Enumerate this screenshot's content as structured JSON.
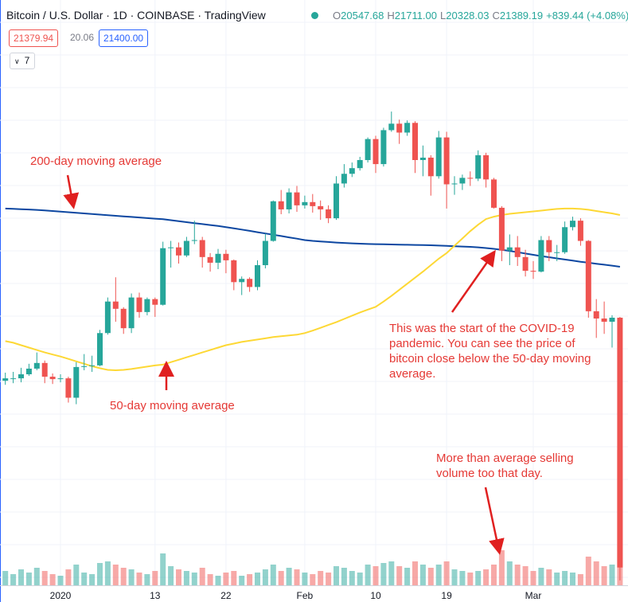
{
  "header": {
    "title": "Bitcoin / U.S. Dollar · 1D · COINBASE · TradingView",
    "ohlc": [
      {
        "label": "O",
        "value": "20547.68"
      },
      {
        "label": "H",
        "value": "21711.00"
      },
      {
        "label": "L",
        "value": "20328.03"
      },
      {
        "label": "C",
        "value": "21389.19"
      }
    ],
    "change": "+839.44 (+4.08%)",
    "price_boxes": {
      "bid": "21379.94",
      "spread": "20.06",
      "ask": "21400.00"
    },
    "indicators": "7"
  },
  "chart_data": {
    "type": "candlestick",
    "categories": [
      null,
      null,
      null,
      null,
      null,
      null,
      null,
      "2020",
      null,
      null,
      null,
      null,
      null,
      null,
      null,
      null,
      null,
      null,
      null,
      "13",
      null,
      null,
      null,
      null,
      null,
      null,
      null,
      null,
      "22",
      null,
      null,
      null,
      null,
      null,
      null,
      null,
      null,
      null,
      "Feb",
      null,
      null,
      null,
      null,
      null,
      null,
      null,
      null,
      "10",
      null,
      null,
      null,
      null,
      null,
      null,
      null,
      null,
      "19",
      null,
      null,
      null,
      null,
      null,
      null,
      null,
      null,
      null,
      null,
      "Mar",
      null,
      null,
      null,
      null,
      null,
      null,
      null,
      null,
      null,
      null,
      null
    ],
    "open": [
      7170,
      7200,
      7200,
      7250,
      7320,
      7390,
      7220,
      7190,
      7200,
      6960,
      7340,
      7350,
      7360,
      7760,
      8150,
      8060,
      7820,
      8200,
      8020,
      8180,
      8110,
      8810,
      8820,
      8720,
      8900,
      8910,
      8700,
      8630,
      8740,
      8660,
      8390,
      8430,
      8330,
      8600,
      8900,
      9390,
      9290,
      9500,
      9340,
      9380,
      9330,
      9290,
      9180,
      9610,
      9730,
      9800,
      9900,
      10160,
      9850,
      10270,
      10350,
      10240,
      10360,
      9900,
      9930,
      9700,
      10180,
      9600,
      9610,
      9680,
      9670,
      9960,
      9660,
      9310,
      8780,
      8820,
      8700,
      8530,
      8520,
      8910,
      8760,
      8760,
      9070,
      9150,
      8900,
      8030,
      7940,
      7900,
      7950
    ],
    "high": [
      7270,
      7280,
      7330,
      7380,
      7520,
      7420,
      7260,
      7250,
      7220,
      7400,
      7500,
      7480,
      7800,
      8200,
      8450,
      8080,
      8250,
      8260,
      8200,
      8200,
      8890,
      8900,
      8880,
      8950,
      9150,
      8950,
      8750,
      8800,
      8790,
      8670,
      8460,
      8450,
      8660,
      8990,
      9400,
      9530,
      9550,
      9580,
      9460,
      9480,
      9400,
      9340,
      9700,
      9850,
      9870,
      9940,
      10180,
      10200,
      10300,
      10500,
      10400,
      10390,
      10380,
      10080,
      9960,
      10260,
      10250,
      9700,
      9720,
      9760,
      10020,
      9990,
      9680,
      9330,
      8980,
      8960,
      8790,
      8650,
      8960,
      8960,
      8850,
      9140,
      9200,
      9180,
      8910,
      8180,
      8150,
      7980,
      7960
    ],
    "low": [
      7120,
      7140,
      7150,
      7230,
      7300,
      7140,
      7130,
      7150,
      6900,
      6880,
      7300,
      7280,
      7350,
      7740,
      7900,
      7750,
      7760,
      7950,
      7980,
      7960,
      8100,
      8570,
      8620,
      8700,
      8860,
      8570,
      8520,
      8550,
      8500,
      8290,
      8230,
      8270,
      8290,
      8560,
      8890,
      9230,
      9240,
      9260,
      9300,
      9250,
      9160,
      9120,
      9160,
      9560,
      9690,
      9770,
      9870,
      9740,
      9820,
      10250,
      10100,
      10200,
      9740,
      9700,
      9460,
      9670,
      9300,
      9470,
      9530,
      9580,
      9640,
      9560,
      9300,
      8650,
      8600,
      8590,
      8460,
      8430,
      8510,
      8650,
      8650,
      8740,
      9030,
      8840,
      7950,
      7700,
      7750,
      7580,
      4700
    ],
    "close": [
      7200,
      7200,
      7250,
      7320,
      7390,
      7220,
      7190,
      7200,
      6960,
      7340,
      7350,
      7360,
      7760,
      8150,
      8060,
      7820,
      8200,
      8020,
      8180,
      8110,
      8810,
      8820,
      8720,
      8900,
      8910,
      8700,
      8630,
      8740,
      8660,
      8390,
      8430,
      8330,
      8600,
      8900,
      9390,
      9290,
      9500,
      9340,
      9380,
      9330,
      9290,
      9180,
      9610,
      9730,
      9800,
      9900,
      10160,
      9850,
      10270,
      10350,
      10240,
      10360,
      9900,
      9930,
      9700,
      10180,
      9600,
      9610,
      9680,
      9670,
      9960,
      9660,
      9310,
      8780,
      8820,
      8700,
      8530,
      8520,
      8910,
      8760,
      8760,
      9070,
      9150,
      8900,
      8030,
      7940,
      7900,
      7950,
      4860
    ],
    "volume": [
      18,
      14,
      20,
      16,
      22,
      18,
      14,
      12,
      20,
      26,
      16,
      14,
      28,
      30,
      26,
      22,
      20,
      16,
      14,
      18,
      40,
      24,
      20,
      18,
      16,
      22,
      14,
      12,
      16,
      18,
      12,
      14,
      16,
      20,
      26,
      18,
      22,
      20,
      16,
      14,
      18,
      16,
      24,
      22,
      18,
      16,
      26,
      24,
      28,
      30,
      24,
      22,
      30,
      26,
      22,
      26,
      30,
      20,
      18,
      16,
      18,
      20,
      26,
      44,
      30,
      26,
      24,
      18,
      22,
      20,
      16,
      18,
      16,
      14,
      36,
      30,
      24,
      26,
      170
    ],
    "ylim": [
      4640,
      11880
    ],
    "vlim": [
      0,
      200
    ],
    "up_color": "#26a69a",
    "down_color": "#ef5350",
    "moving_averages": [
      {
        "color": "#0d47a1",
        "values": [
          9300,
          9296,
          9292,
          9288,
          9283,
          9278,
          9270,
          9262,
          9255,
          9248,
          9240,
          9232,
          9225,
          9218,
          9211,
          9204,
          9197,
          9190,
          9182,
          9175,
          9168,
          9156,
          9144,
          9132,
          9120,
          9108,
          9096,
          9084,
          9070,
          9056,
          9040,
          9024,
          9008,
          8992,
          8976,
          8960,
          8944,
          8928,
          8910,
          8900,
          8893,
          8886,
          8880,
          8875,
          8870,
          8866,
          8862,
          8860,
          8858,
          8856,
          8854,
          8852,
          8850,
          8848,
          8846,
          8842,
          8838,
          8834,
          8830,
          8826,
          8820,
          8812,
          8802,
          8790,
          8776,
          8760,
          8744,
          8728,
          8712,
          8698,
          8684,
          8670,
          8656,
          8642,
          8630,
          8618,
          8606,
          8594,
          8580
        ]
      },
      {
        "color": "#fdd835",
        "values": [
          7660,
          7640,
          7610,
          7580,
          7550,
          7520,
          7495,
          7470,
          7440,
          7410,
          7380,
          7350,
          7325,
          7305,
          7300,
          7305,
          7315,
          7330,
          7345,
          7360,
          7370,
          7400,
          7430,
          7460,
          7490,
          7520,
          7550,
          7580,
          7610,
          7630,
          7650,
          7665,
          7680,
          7695,
          7710,
          7720,
          7730,
          7740,
          7760,
          7790,
          7825,
          7860,
          7895,
          7935,
          7975,
          8015,
          8050,
          8085,
          8150,
          8220,
          8295,
          8370,
          8445,
          8520,
          8600,
          8680,
          8750,
          8840,
          8930,
          9020,
          9100,
          9170,
          9200,
          9220,
          9235,
          9245,
          9255,
          9265,
          9275,
          9285,
          9295,
          9300,
          9300,
          9295,
          9285,
          9270,
          9255,
          9240,
          9220
        ]
      }
    ],
    "annotations": [
      {
        "text": "200-day moving average"
      },
      {
        "text": "50-day moving average"
      },
      {
        "text": "This was the start of the COVID-19 pandemic. You can see the price of bitcoin close below the 50-day moving average."
      },
      {
        "text": "More than average selling volume too that day."
      }
    ]
  }
}
